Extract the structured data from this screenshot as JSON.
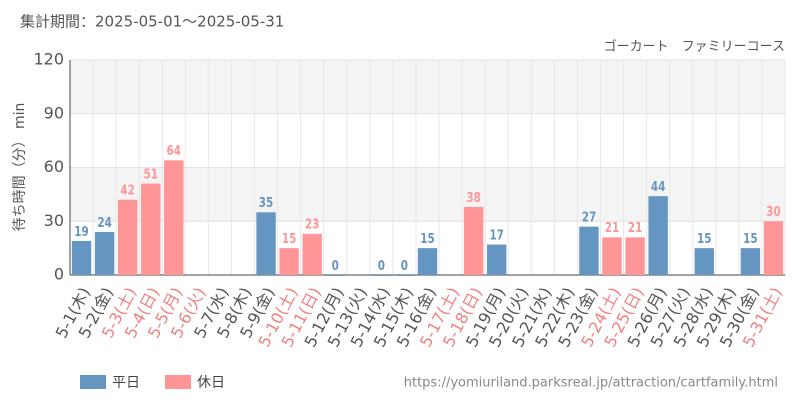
{
  "chart_data": {
    "type": "bar",
    "title": "集計期間：2025-05-01～2025-05-31",
    "subtitle": "ゴーカート　ファミリーコース",
    "y_label": "待ち時間（分） min",
    "source": "https://yomiuriland.parksreal.jp/attraction/cartfamily.html",
    "categories": [
      "5-1(木)",
      "5-2(金)",
      "5-3(土)",
      "5-4(日)",
      "5-5(月)",
      "5-6(火)",
      "5-7(水)",
      "5-8(木)",
      "5-9(金)",
      "5-10(土)",
      "5-11(日)",
      "5-12(月)",
      "5-13(火)",
      "5-14(水)",
      "5-15(木)",
      "5-16(金)",
      "5-17(土)",
      "5-18(日)",
      "5-19(月)",
      "5-20(火)",
      "5-21(水)",
      "5-22(木)",
      "5-23(金)",
      "5-24(土)",
      "5-25(日)",
      "5-26(月)",
      "5-27(火)",
      "5-28(水)",
      "5-29(木)",
      "5-30(金)",
      "5-31(土)"
    ],
    "label_colors": [
      "#555",
      "#555",
      "#f28080",
      "#f28080",
      "#f28080",
      "#f28080",
      "#555",
      "#555",
      "#555",
      "#f28080",
      "#f28080",
      "#555",
      "#555",
      "#555",
      "#555",
      "#555",
      "#f28080",
      "#f28080",
      "#555",
      "#555",
      "#555",
      "#555",
      "#555",
      "#f28080",
      "#f28080",
      "#555",
      "#555",
      "#555",
      "#555",
      "#555",
      "#f28080"
    ],
    "series": [
      {
        "name": "平日",
        "color": "#6596c2",
        "values": [
          19,
          24,
          null,
          null,
          null,
          null,
          null,
          null,
          35,
          null,
          null,
          0,
          null,
          0,
          0,
          15,
          null,
          null,
          17,
          null,
          null,
          null,
          27,
          null,
          null,
          44,
          null,
          15,
          null,
          15,
          null
        ]
      },
      {
        "name": "休日",
        "color": "#ff9596",
        "values": [
          null,
          null,
          42,
          51,
          64,
          null,
          null,
          null,
          null,
          15,
          23,
          null,
          null,
          null,
          null,
          null,
          null,
          38,
          null,
          null,
          null,
          null,
          null,
          21,
          21,
          null,
          null,
          null,
          null,
          null,
          30
        ]
      }
    ],
    "ylim": [
      0,
      120
    ],
    "yticks": [
      0,
      30,
      60,
      90,
      120
    ],
    "grid": true
  }
}
